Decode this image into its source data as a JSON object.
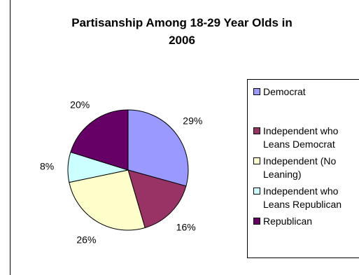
{
  "chart_data": {
    "type": "pie",
    "title": "Partisanship Among 18-29 Year Olds in\n2006",
    "categories": [
      "Democrat",
      "Independent who\nLeans Democrat",
      "Independent (No\nLeaning)",
      "Independent who\nLeans Republican",
      "Republican"
    ],
    "values": [
      29,
      16,
      26,
      8,
      20
    ],
    "value_labels": [
      "29%",
      "16%",
      "26%",
      "8%",
      "20%"
    ],
    "colors": [
      "#9999ff",
      "#993366",
      "#ffffcc",
      "#ccffff",
      "#660066"
    ],
    "legend_position": "right"
  }
}
